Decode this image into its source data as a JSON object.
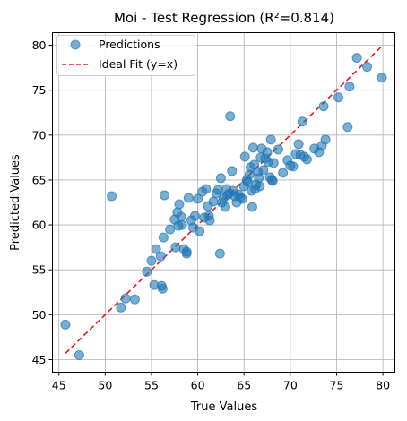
{
  "chart_data": {
    "type": "scatter",
    "title": "Moi - Test Regression (R²=0.814)",
    "xlabel": "True Values",
    "ylabel": "Predicted Values",
    "xlim": [
      44.3,
      81.3
    ],
    "ylim": [
      43.6,
      81.4
    ],
    "xticks": [
      45,
      50,
      55,
      60,
      65,
      70,
      75,
      80
    ],
    "yticks": [
      45,
      50,
      55,
      60,
      65,
      70,
      75,
      80
    ],
    "grid": true,
    "legend_position": "top-left",
    "series": [
      {
        "name": "Predictions",
        "kind": "scatter",
        "color": "#1f77b4",
        "points": [
          [
            45.7,
            48.9
          ],
          [
            47.2,
            45.5
          ],
          [
            50.7,
            63.2
          ],
          [
            51.7,
            50.8
          ],
          [
            52.2,
            51.8
          ],
          [
            53.2,
            51.7
          ],
          [
            54.5,
            54.8
          ],
          [
            55.0,
            56.0
          ],
          [
            55.3,
            53.3
          ],
          [
            55.5,
            57.3
          ],
          [
            56.0,
            56.5
          ],
          [
            56.1,
            53.2
          ],
          [
            56.2,
            52.9
          ],
          [
            56.3,
            58.6
          ],
          [
            56.4,
            63.3
          ],
          [
            57.0,
            59.5
          ],
          [
            57.5,
            60.6
          ],
          [
            57.6,
            57.5
          ],
          [
            57.8,
            61.4
          ],
          [
            57.9,
            59.9
          ],
          [
            58.0,
            62.3
          ],
          [
            58.2,
            60.9
          ],
          [
            58.3,
            60.0
          ],
          [
            58.5,
            57.3
          ],
          [
            58.8,
            57.0
          ],
          [
            58.8,
            56.8
          ],
          [
            59.0,
            63.0
          ],
          [
            59.3,
            60.5
          ],
          [
            59.5,
            59.7
          ],
          [
            59.7,
            61.0
          ],
          [
            60.0,
            62.9
          ],
          [
            60.2,
            59.3
          ],
          [
            60.5,
            63.7
          ],
          [
            60.7,
            60.8
          ],
          [
            60.9,
            64.0
          ],
          [
            61.1,
            62.1
          ],
          [
            61.2,
            61.0
          ],
          [
            61.3,
            60.5
          ],
          [
            61.7,
            62.6
          ],
          [
            62.0,
            63.5
          ],
          [
            62.2,
            63.9
          ],
          [
            62.4,
            56.8
          ],
          [
            62.5,
            65.2
          ],
          [
            62.6,
            62.5
          ],
          [
            62.8,
            63.0
          ],
          [
            63.0,
            62.0
          ],
          [
            63.1,
            64.0
          ],
          [
            63.2,
            63.3
          ],
          [
            63.4,
            63.5
          ],
          [
            63.5,
            72.1
          ],
          [
            63.7,
            66.0
          ],
          [
            63.8,
            63.8
          ],
          [
            64.0,
            63.2
          ],
          [
            64.2,
            62.5
          ],
          [
            64.4,
            63.4
          ],
          [
            64.6,
            63.1
          ],
          [
            64.8,
            62.9
          ],
          [
            65.0,
            64.3
          ],
          [
            65.1,
            67.6
          ],
          [
            65.3,
            65.0
          ],
          [
            65.4,
            64.8
          ],
          [
            65.6,
            65.6
          ],
          [
            65.7,
            66.4
          ],
          [
            65.8,
            63.8
          ],
          [
            65.9,
            62.0
          ],
          [
            66.0,
            68.6
          ],
          [
            66.1,
            66.7
          ],
          [
            66.2,
            64.0
          ],
          [
            66.3,
            64.5
          ],
          [
            66.5,
            65.9
          ],
          [
            66.6,
            65.2
          ],
          [
            66.7,
            64.3
          ],
          [
            66.8,
            67.5
          ],
          [
            66.9,
            68.5
          ],
          [
            67.1,
            66.1
          ],
          [
            67.3,
            67.4
          ],
          [
            67.5,
            68.1
          ],
          [
            67.6,
            67.0
          ],
          [
            67.8,
            65.3
          ],
          [
            67.9,
            69.5
          ],
          [
            68.0,
            65.0
          ],
          [
            68.1,
            64.9
          ],
          [
            68.2,
            66.9
          ],
          [
            68.7,
            68.4
          ],
          [
            69.2,
            65.8
          ],
          [
            69.7,
            67.2
          ],
          [
            70.0,
            66.6
          ],
          [
            70.3,
            66.5
          ],
          [
            70.6,
            67.9
          ],
          [
            70.9,
            69.0
          ],
          [
            71.1,
            67.8
          ],
          [
            71.3,
            71.5
          ],
          [
            71.5,
            67.6
          ],
          [
            71.8,
            67.3
          ],
          [
            72.6,
            68.5
          ],
          [
            73.1,
            68.1
          ],
          [
            73.4,
            68.8
          ],
          [
            73.6,
            73.2
          ],
          [
            73.8,
            69.5
          ],
          [
            75.2,
            74.2
          ],
          [
            76.2,
            70.9
          ],
          [
            76.4,
            75.4
          ],
          [
            77.2,
            78.6
          ],
          [
            78.3,
            77.6
          ],
          [
            79.9,
            76.4
          ]
        ]
      },
      {
        "name": "Ideal Fit (y=x)",
        "kind": "line",
        "color": "#e31a1c",
        "dash": "dashed",
        "points": [
          [
            45.7,
            45.7
          ],
          [
            79.9,
            79.9
          ]
        ]
      }
    ]
  }
}
